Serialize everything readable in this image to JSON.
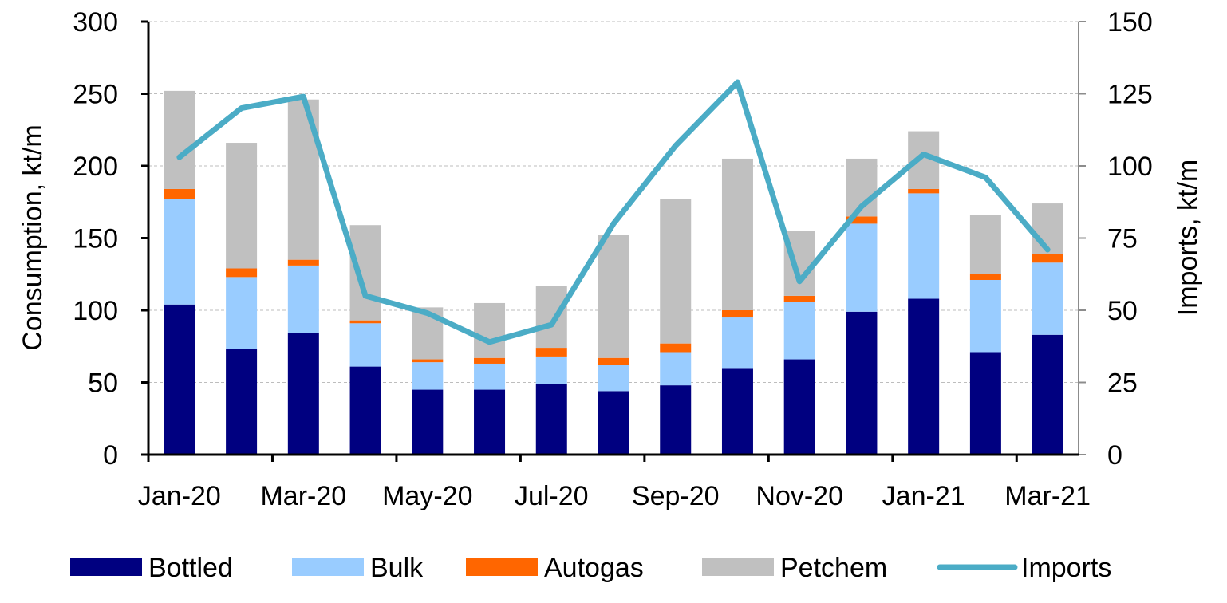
{
  "chart_data": {
    "type": "bar",
    "stacked": true,
    "categories": [
      "Jan-20",
      "Feb-20",
      "Mar-20",
      "Apr-20",
      "May-20",
      "Jun-20",
      "Jul-20",
      "Aug-20",
      "Sep-20",
      "Oct-20",
      "Nov-20",
      "Dec-20",
      "Jan-21",
      "Feb-21",
      "Mar-21"
    ],
    "x_tick_labels": [
      "Jan-20",
      "Mar-20",
      "May-20",
      "Jul-20",
      "Sep-20",
      "Nov-20",
      "Jan-21",
      "Mar-21"
    ],
    "series": [
      {
        "name": "Bottled",
        "color": "#000080",
        "values": [
          104,
          73,
          84,
          61,
          45,
          45,
          49,
          44,
          48,
          60,
          66,
          99,
          108,
          71,
          83
        ]
      },
      {
        "name": "Bulk",
        "color": "#99ccff",
        "values": [
          73,
          50,
          47,
          30,
          19,
          18,
          19,
          18,
          23,
          35,
          40,
          61,
          73,
          50,
          50
        ]
      },
      {
        "name": "Autogas",
        "color": "#ff6600",
        "values": [
          7,
          6,
          4,
          2,
          2,
          4,
          6,
          5,
          6,
          5,
          4,
          5,
          3,
          4,
          6
        ]
      },
      {
        "name": "Petchem",
        "color": "#c0c0c0",
        "values": [
          68,
          87,
          111,
          66,
          36,
          38,
          43,
          85,
          100,
          105,
          45,
          40,
          40,
          41,
          35
        ]
      }
    ],
    "line_series": [
      {
        "name": "Imports",
        "color": "#4bacc6",
        "axis": "right",
        "values": [
          103,
          120,
          124,
          55,
          49,
          39,
          45,
          80,
          107,
          129,
          60,
          86,
          104,
          96,
          71
        ]
      }
    ],
    "ylabel": "Consumption, kt/m",
    "y2label": "Imports, kt/m",
    "ylim": [
      0,
      300
    ],
    "y2lim": [
      0,
      150
    ],
    "yticks": [
      "0",
      "50",
      "100",
      "150",
      "200",
      "250",
      "300"
    ],
    "y2ticks": [
      "0",
      "25",
      "50",
      "75",
      "100",
      "125",
      "150"
    ],
    "grid": true,
    "legend_position": "bottom"
  }
}
